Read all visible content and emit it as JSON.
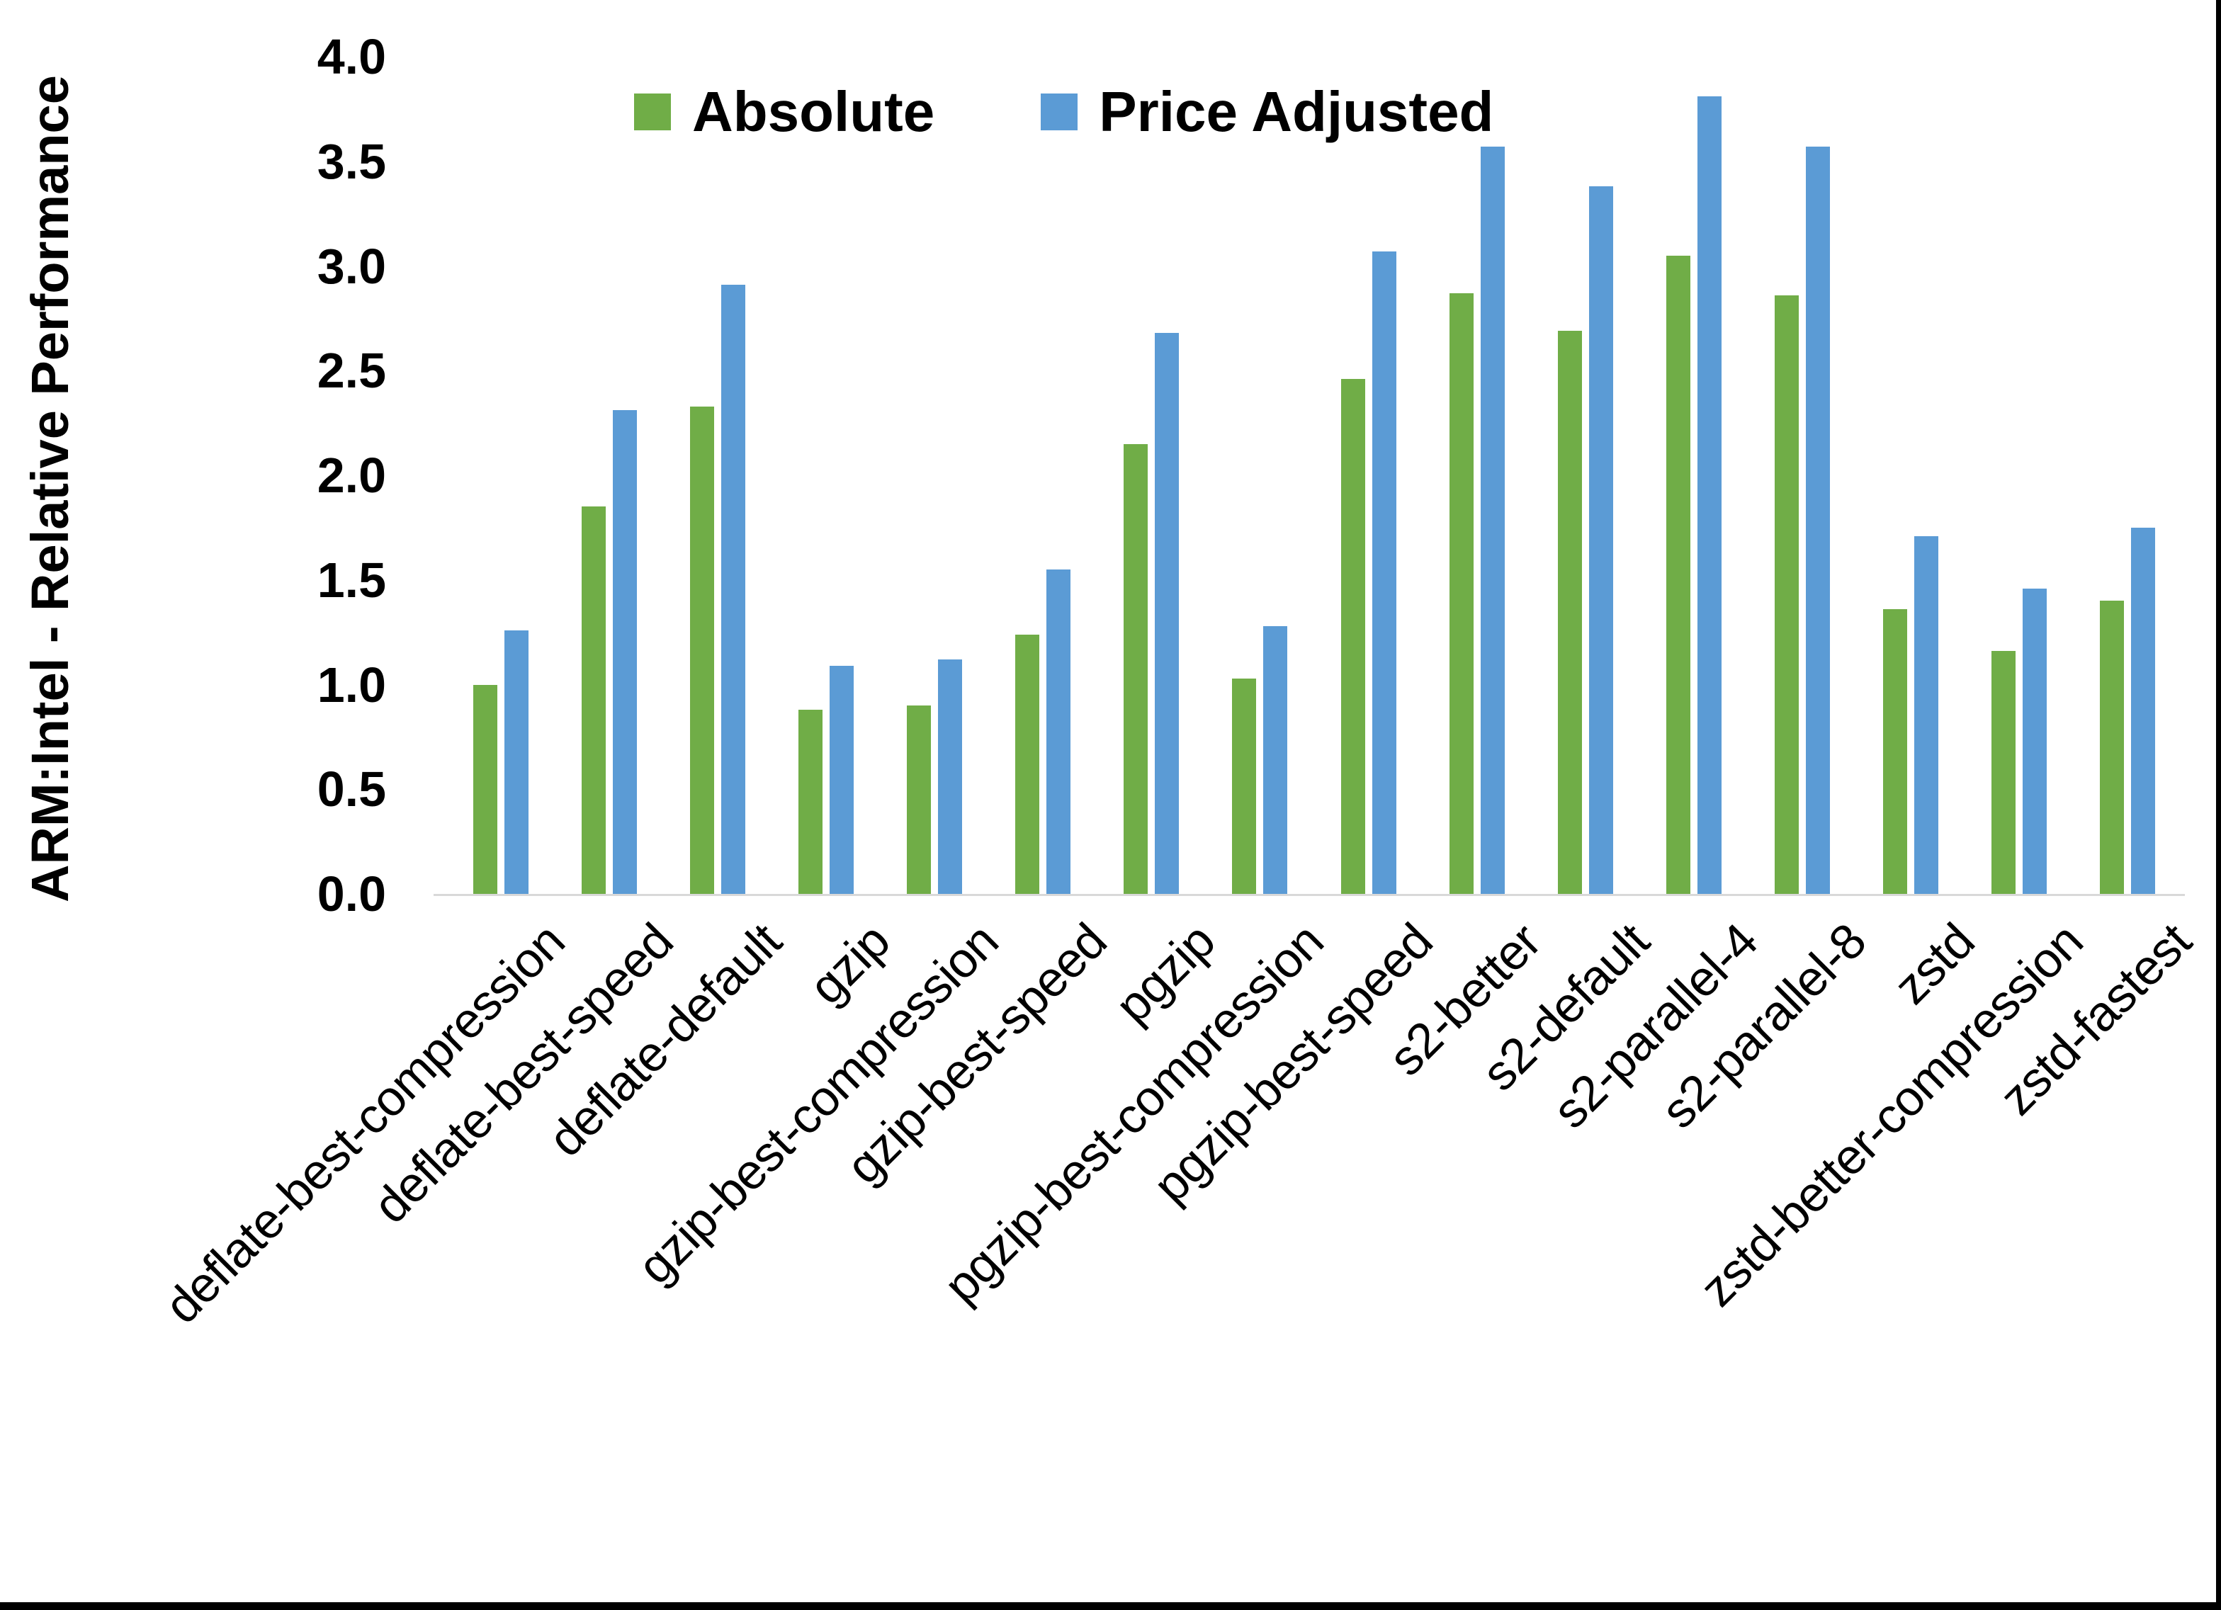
{
  "chart_data": {
    "type": "bar",
    "title": "",
    "xlabel": "",
    "ylabel": "ARM:Intel - Relative Performance",
    "ylim": [
      0.0,
      4.0
    ],
    "ytick_step": 0.5,
    "yticks": [
      "4.0",
      "3.5",
      "3.0",
      "2.5",
      "2.0",
      "1.5",
      "1.0",
      "0.5",
      "0.0"
    ],
    "grid": false,
    "legend_position": "top-center",
    "categories": [
      "deflate-best-compression",
      "deflate-best-speed",
      "deflate-default",
      "gzip",
      "gzip-best-compression",
      "gzip-best-speed",
      "pgzip",
      "pgzip-best-compression",
      "pgzip-best-speed",
      "s2-better",
      "s2-default",
      "s2-parallel-4",
      "s2-parallel-8",
      "zstd",
      "zstd-better-compression",
      "zstd-fastest"
    ],
    "series": [
      {
        "name": "Absolute",
        "color": "#70AD47",
        "values": [
          1.0,
          1.85,
          2.33,
          0.88,
          0.9,
          1.24,
          2.15,
          1.03,
          2.46,
          2.87,
          2.69,
          3.05,
          2.86,
          1.36,
          1.16,
          1.4
        ]
      },
      {
        "name": "Price Adjusted",
        "color": "#5B9BD5",
        "values": [
          1.26,
          2.31,
          2.91,
          1.09,
          1.12,
          1.55,
          2.68,
          1.28,
          3.07,
          3.57,
          3.38,
          3.81,
          3.57,
          1.71,
          1.46,
          1.75
        ]
      }
    ]
  },
  "colors": {
    "background": "#FFFFFF",
    "axis_line": "#D9D9D9",
    "text": "#000000",
    "border": "#000000"
  }
}
